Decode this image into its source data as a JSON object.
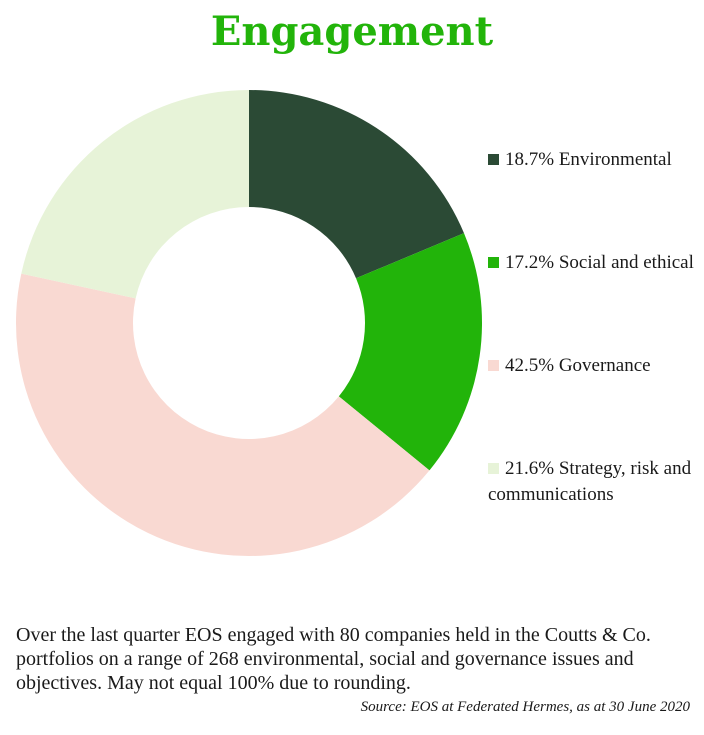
{
  "chart_data": {
    "type": "pie",
    "title": "Engagement",
    "categories": [
      "Environmental",
      "Social and ethical",
      "Governance",
      "Strategy, risk and communications"
    ],
    "values": [
      18.7,
      17.2,
      42.5,
      21.6
    ],
    "legend": [
      {
        "label": "18.7% Environmental",
        "color": "#2b4a35"
      },
      {
        "label": "17.2% Social and ethical",
        "color": "#22b40a"
      },
      {
        "label": "42.5% Governance",
        "color": "#f9d9d2"
      },
      {
        "label": "21.6% Strategy, risk and communications",
        "color": "#e7f3d8"
      }
    ],
    "colors": [
      "#2b4a35",
      "#22b40a",
      "#f9d9d2",
      "#e7f3d8"
    ],
    "legend_position": "right"
  },
  "footnote": "Over the last quarter EOS engaged with 80 companies held in the Coutts & Co. portfolios on a range of 268 environmental, social and governance issues and objectives. May not equal 100% due to rounding.",
  "source": "Source: EOS at Federated Hermes, as at 30 June 2020"
}
